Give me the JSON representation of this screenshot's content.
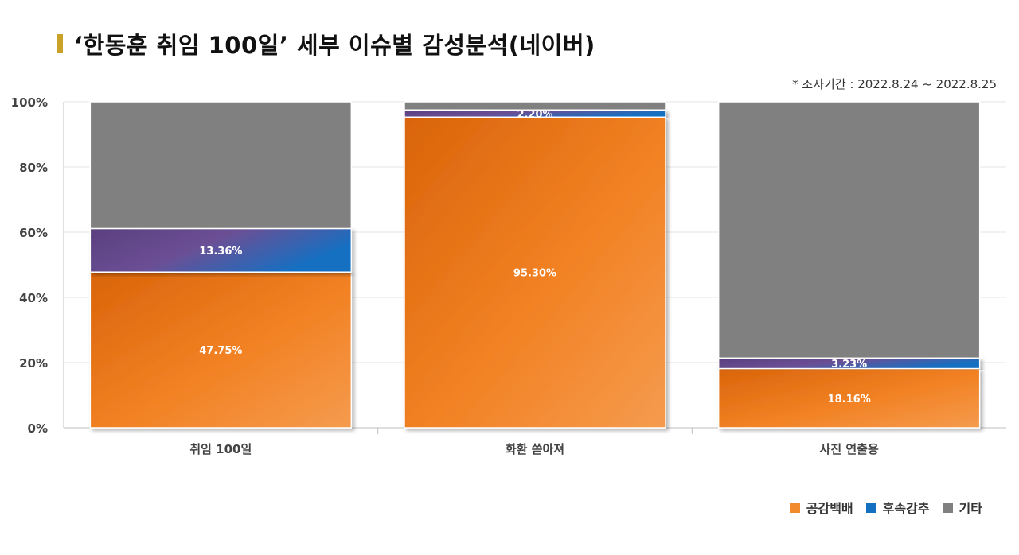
{
  "title": "‘한동훈 취임 100일’ 세부 이슈별 감성분석(네이버)",
  "survey_note": "* 조사기간 : 2022.8.24 ~ 2022.8.25",
  "colors": {
    "empathy": "#f28b2c",
    "empathy_dark": "#d9640a",
    "followup": "#1570c2",
    "followup_purple": "#5a3f7e",
    "other": "#808080",
    "title_marker": "#c9a227"
  },
  "chart_data": {
    "type": "bar",
    "stacked": true,
    "categories": [
      "취임 100일",
      "화환 쏟아져",
      "사진 연출용"
    ],
    "series": [
      {
        "name": "공감백배",
        "values": [
          47.75,
          95.3,
          18.16
        ],
        "labels": [
          "47.75%",
          "95.30%",
          "18.16%"
        ]
      },
      {
        "name": "후속강추",
        "values": [
          13.36,
          2.2,
          3.23
        ],
        "labels": [
          "13.36%",
          "2.20%",
          "3.23%"
        ]
      },
      {
        "name": "기타",
        "values": [
          38.89,
          2.5,
          78.61
        ]
      }
    ],
    "yticks": [
      "0%",
      "20%",
      "40%",
      "60%",
      "80%",
      "100%"
    ],
    "ylim": [
      0,
      100
    ],
    "grid": true,
    "legend_position": "bottom-right"
  }
}
